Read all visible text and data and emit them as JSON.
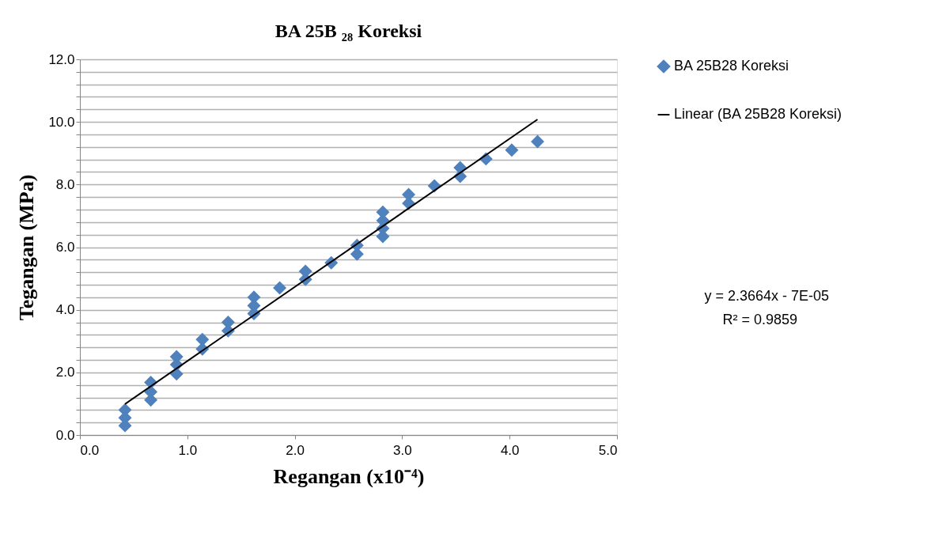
{
  "chart_data": {
    "type": "scatter",
    "title": "BA 25B ₂₈ Koreksi",
    "xlabel": "Regangan (x10⁻⁴)",
    "ylabel": "Tegangan (MPa)",
    "xlim": [
      0,
      5
    ],
    "xticks": [
      {
        "value": 0,
        "label": "0.0"
      },
      {
        "value": 1,
        "label": "1.0"
      },
      {
        "value": 2,
        "label": "2.0"
      },
      {
        "value": 3,
        "label": "3.0"
      },
      {
        "value": 4,
        "label": "4.0"
      },
      {
        "value": 5,
        "label": "5.0"
      }
    ],
    "ylim": [
      0,
      12
    ],
    "yticks": [
      {
        "value": 0,
        "label": "0.0"
      },
      {
        "value": 0.4,
        "label": null
      },
      {
        "value": 0.8,
        "label": null
      },
      {
        "value": 1.2,
        "label": null
      },
      {
        "value": 1.6,
        "label": null
      },
      {
        "value": 2,
        "label": "2.0"
      },
      {
        "value": 2.4,
        "label": null
      },
      {
        "value": 2.8,
        "label": null
      },
      {
        "value": 3.2,
        "label": null
      },
      {
        "value": 3.6,
        "label": null
      },
      {
        "value": 4,
        "label": "4.0"
      },
      {
        "value": 4.4,
        "label": null
      },
      {
        "value": 4.8,
        "label": null
      },
      {
        "value": 5.2,
        "label": null
      },
      {
        "value": 5.6,
        "label": null
      },
      {
        "value": 6,
        "label": "6.0"
      },
      {
        "value": 6.4,
        "label": null
      },
      {
        "value": 6.8,
        "label": null
      },
      {
        "value": 7.2,
        "label": null
      },
      {
        "value": 7.6,
        "label": null
      },
      {
        "value": 8,
        "label": "8.0"
      },
      {
        "value": 8.4,
        "label": null
      },
      {
        "value": 8.8,
        "label": null
      },
      {
        "value": 9.2,
        "label": null
      },
      {
        "value": 9.6,
        "label": null
      },
      {
        "value": 10,
        "label": "10.0"
      },
      {
        "value": 10.4,
        "label": null
      },
      {
        "value": 10.8,
        "label": null
      },
      {
        "value": 11.2,
        "label": null
      },
      {
        "value": 11.6,
        "label": null
      },
      {
        "value": 12,
        "label": "12.0"
      }
    ],
    "grid": "y",
    "legend": "right",
    "series": [
      {
        "name": "BA 25B28 Koreksi",
        "type": "scatter",
        "marker": "diamond",
        "color": "#4f81bd",
        "x": [
          0.42,
          0.42,
          0.42,
          0.66,
          0.66,
          0.66,
          0.9,
          0.9,
          0.9,
          1.14,
          1.14,
          1.38,
          1.38,
          1.62,
          1.62,
          1.62,
          1.86,
          2.1,
          2.1,
          2.34,
          2.58,
          2.58,
          2.82,
          2.82,
          2.82,
          2.82,
          3.06,
          3.06,
          3.3,
          3.54,
          3.54,
          3.78,
          4.02,
          4.26
        ],
        "values": [
          0.3,
          0.55,
          0.8,
          1.12,
          1.38,
          1.68,
          1.95,
          2.25,
          2.5,
          2.75,
          3.05,
          3.33,
          3.6,
          3.88,
          4.13,
          4.4,
          4.7,
          4.97,
          5.23,
          5.5,
          5.78,
          6.06,
          6.34,
          6.6,
          6.85,
          7.12,
          7.4,
          7.68,
          7.96,
          8.26,
          8.54,
          8.82,
          9.1,
          9.37
        ]
      },
      {
        "name": "Linear (BA 25B28 Koreksi)",
        "type": "line",
        "marker": "none",
        "line_style": "solid",
        "color": "#000000",
        "x": [
          0.42,
          4.26
        ],
        "values": [
          0.99,
          10.08
        ]
      }
    ],
    "annotations": [
      "y = 2.3664x - 7E-05",
      "R² = 0.9859"
    ]
  }
}
